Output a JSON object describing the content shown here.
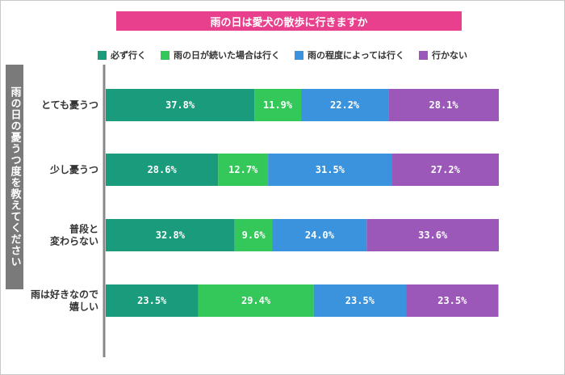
{
  "title": "雨の日は愛犬の散歩に行きますか",
  "y_axis_title": "雨の日の憂うつ度を教えてください",
  "colors": {
    "title_bg": "#e8408c",
    "axis": "#888888",
    "series": [
      "#1a9c7c",
      "#34c759",
      "#3b93dd",
      "#9b58b8"
    ]
  },
  "chart_data": {
    "type": "bar",
    "orientation": "horizontal",
    "stacked": true,
    "normalized": true,
    "title": "雨の日は愛犬の散歩に行きますか",
    "ylabel": "雨の日の憂うつ度を教えてください",
    "xlabel": "",
    "xlim": [
      0,
      100
    ],
    "legend_position": "top",
    "grid": false,
    "categories": [
      "とても憂うつ",
      "少し憂うつ",
      "普段と変わらない",
      "雨は好きなので嬉しい"
    ],
    "category_lines": [
      [
        "とても憂うつ"
      ],
      [
        "少し憂うつ"
      ],
      [
        "普段と",
        "変わらない"
      ],
      [
        "雨は好きなので",
        "嬉しい"
      ]
    ],
    "series": [
      {
        "name": "必ず行く",
        "values": [
          37.8,
          28.6,
          32.8,
          23.5
        ]
      },
      {
        "name": "雨の日が続いた場合は行く",
        "values": [
          11.9,
          12.7,
          9.6,
          29.4
        ]
      },
      {
        "name": "雨の程度によっては行く",
        "values": [
          22.2,
          31.5,
          24.0,
          23.5
        ]
      },
      {
        "name": "行かない",
        "values": [
          28.1,
          27.2,
          33.6,
          23.5
        ]
      }
    ],
    "labels": [
      [
        "37.8%",
        "11.9%",
        "22.2%",
        "28.1%"
      ],
      [
        "28.6%",
        "12.7%",
        "31.5%",
        "27.2%"
      ],
      [
        "32.8%",
        "9.6%",
        "24.0%",
        "33.6%"
      ],
      [
        "23.5%",
        "29.4%",
        "23.5%",
        "23.5%"
      ]
    ]
  }
}
